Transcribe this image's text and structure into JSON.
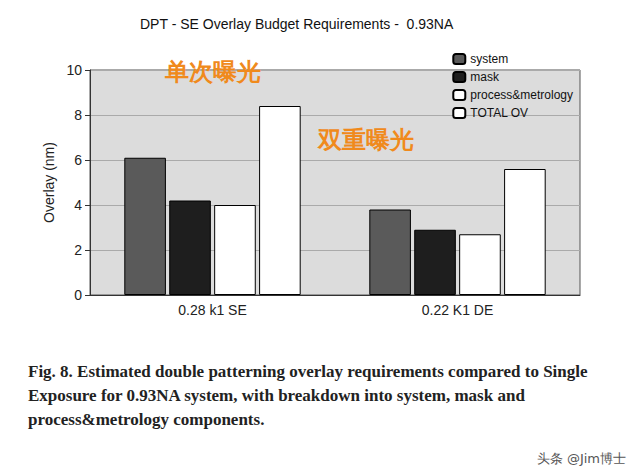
{
  "chart_data": {
    "type": "bar",
    "title": "DPT - SE Overlay Budget Requirements -  0.93NA",
    "y_label": "Overlay (nm)",
    "categories": [
      "0.28 k1 SE",
      "0.22 K1 DE"
    ],
    "series": [
      {
        "name": "system",
        "color": "#5a5a5a",
        "values": [
          6.1,
          3.8
        ]
      },
      {
        "name": "mask",
        "color": "#1e1e1e",
        "values": [
          4.2,
          2.9
        ]
      },
      {
        "name": "process&metrology",
        "color": "#ffffff",
        "values": [
          4.0,
          2.7
        ]
      },
      {
        "name": "TOTAL OV",
        "color": "#ffffff",
        "values": [
          8.4,
          5.6
        ]
      }
    ],
    "ylim": [
      0,
      10
    ],
    "yticks": [
      0,
      2,
      4,
      6,
      8,
      10
    ],
    "grid": true,
    "legend": "upper right",
    "annotations": [
      "单次曝光",
      "双重曝光"
    ],
    "caption": "Fig. 8.  Estimated double patterning overlay requirements compared  to Single Exposure for 0.93NA system, with breakdown into system, mask and process&metrology components.",
    "watermark": "头条 @Jim博士"
  }
}
